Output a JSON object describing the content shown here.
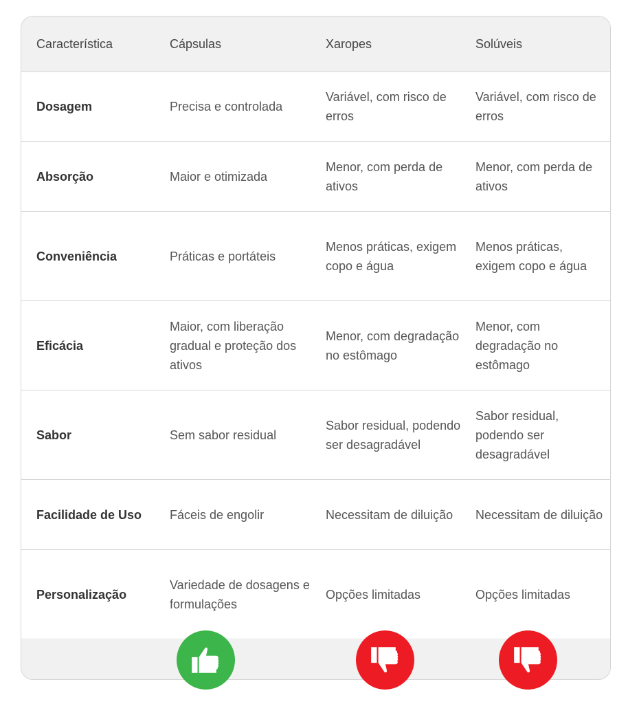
{
  "table": {
    "headers": [
      "Característica",
      "Cápsulas",
      "Xaropes",
      "Solúveis"
    ],
    "rows": [
      [
        "Dosagem",
        "Precisa e controlada",
        "Variável, com risco de erros",
        "Variável, com risco de erros"
      ],
      [
        "Absorção",
        "Maior e otimizada",
        "Menor, com perda de ativos",
        "Menor, com perda de ativos"
      ],
      [
        "Conveniência",
        "Práticas e portáteis",
        "Menos práticas, exigem copo e água",
        "Menos práticas, exigem copo e água"
      ],
      [
        "Eficácia",
        "Maior, com liberação gradual e proteção dos ativos",
        "Menor, com degradação no estômago",
        "Menor, com degradação no estômago"
      ],
      [
        "Sabor",
        "Sem sabor residual",
        "Sabor residual, podendo ser desagradável",
        "Sabor residual, podendo ser desagradável"
      ],
      [
        "Facilidade de Uso",
        "Fáceis de engolir",
        "Necessitam de diluição",
        "Necessitam de diluição"
      ],
      [
        "Personalização",
        "Variedade de dosagens e formulações",
        "Opções limitadas",
        "Opções limitadas"
      ]
    ]
  },
  "verdicts": [
    {
      "column": "Cápsulas",
      "icon": "thumbs-up-icon",
      "color": "#3cb54a"
    },
    {
      "column": "Xaropes",
      "icon": "thumbs-down-icon",
      "color": "#ed1c24"
    },
    {
      "column": "Solúveis",
      "icon": "thumbs-down-icon",
      "color": "#ed1c24"
    }
  ]
}
